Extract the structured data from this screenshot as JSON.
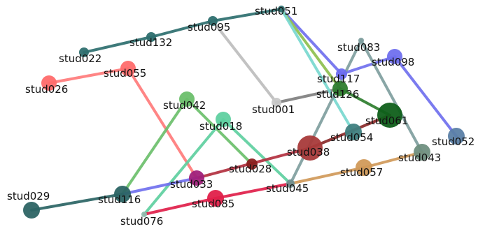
{
  "graph": {
    "nodes": [
      {
        "id": "stud051",
        "label": "stud051",
        "color": "#2e6f6f"
      },
      {
        "id": "stud095",
        "label": "stud095",
        "color": "#2e6f6f"
      },
      {
        "id": "stud132",
        "label": "stud132",
        "color": "#2e6f6f"
      },
      {
        "id": "stud022",
        "label": "stud022",
        "color": "#2e6f6f"
      },
      {
        "id": "stud055",
        "label": "stud055",
        "color": "#ff6b6b"
      },
      {
        "id": "stud026",
        "label": "stud026",
        "color": "#ff6b6b"
      },
      {
        "id": "stud083",
        "label": "stud083",
        "color": "#7f9f9f"
      },
      {
        "id": "stud098",
        "label": "stud098",
        "color": "#7070ee"
      },
      {
        "id": "stud117",
        "label": "stud117",
        "color": "#6c6cf0"
      },
      {
        "id": "stud126",
        "label": "stud126",
        "color": "#2e7d2e"
      },
      {
        "id": "stud001",
        "label": "stud001",
        "color": "#c8c8c8"
      },
      {
        "id": "stud042",
        "label": "stud042",
        "color": "#6cbf6c"
      },
      {
        "id": "stud018",
        "label": "stud018",
        "color": "#5fd0a0"
      },
      {
        "id": "stud061",
        "label": "stud061",
        "color": "#0f5f1a"
      },
      {
        "id": "stud054",
        "label": "stud054",
        "color": "#3f7f80"
      },
      {
        "id": "stud052",
        "label": "stud052",
        "color": "#5b7fa6"
      },
      {
        "id": "stud038",
        "label": "stud038",
        "color": "#a83a3a"
      },
      {
        "id": "stud043",
        "label": "stud043",
        "color": "#6f8f80"
      },
      {
        "id": "stud028",
        "label": "stud028",
        "color": "#8a1f1f"
      },
      {
        "id": "stud057",
        "label": "stud057",
        "color": "#d19a5a"
      },
      {
        "id": "stud033",
        "label": "stud033",
        "color": "#a0207a"
      },
      {
        "id": "stud045",
        "label": "stud045",
        "color": "#708f8f"
      },
      {
        "id": "stud116",
        "label": "stud116",
        "color": "#2b6464"
      },
      {
        "id": "stud085",
        "label": "stud085",
        "color": "#e0204a"
      },
      {
        "id": "stud029",
        "label": "stud029",
        "color": "#2d6464"
      },
      {
        "id": "stud076",
        "label": "stud076",
        "color": "#8fbfb0"
      }
    ],
    "edges": [
      {
        "source": "stud022",
        "target": "stud132",
        "color": "#2e6f6f"
      },
      {
        "source": "stud132",
        "target": "stud095",
        "color": "#2e6f6f"
      },
      {
        "source": "stud095",
        "target": "stud051",
        "color": "#2e6f6f"
      },
      {
        "source": "stud095",
        "target": "stud001",
        "color": "#bdbdbd"
      },
      {
        "source": "stud001",
        "target": "stud126",
        "color": "#7f7f7f"
      },
      {
        "source": "stud051",
        "target": "stud117",
        "color": "#7070ee"
      },
      {
        "source": "stud051",
        "target": "stud126",
        "color": "#8fbf4f"
      },
      {
        "source": "stud051",
        "target": "stud054",
        "color": "#79d8d0"
      },
      {
        "source": "stud117",
        "target": "stud098",
        "color": "#7070ee"
      },
      {
        "source": "stud098",
        "target": "stud052",
        "color": "#7070ee"
      },
      {
        "source": "stud083",
        "target": "stud043",
        "color": "#7f9f9f"
      },
      {
        "source": "stud083",
        "target": "stud045",
        "color": "#7f9f9f"
      },
      {
        "source": "stud126",
        "target": "stud061",
        "color": "#2e7d2e"
      },
      {
        "source": "stud026",
        "target": "stud055",
        "color": "#ff7b7b"
      },
      {
        "source": "stud055",
        "target": "stud033",
        "color": "#ff7b7b"
      },
      {
        "source": "stud042",
        "target": "stud116",
        "color": "#6cbf6c"
      },
      {
        "source": "stud042",
        "target": "stud028",
        "color": "#6cbf6c"
      },
      {
        "source": "stud018",
        "target": "stud045",
        "color": "#5fd0a0"
      },
      {
        "source": "stud018",
        "target": "stud076",
        "color": "#5fd0a0"
      },
      {
        "source": "stud033",
        "target": "stud038",
        "color": "#b23040"
      },
      {
        "source": "stud038",
        "target": "stud061",
        "color": "#8a2a2a"
      },
      {
        "source": "stud116",
        "target": "stud033",
        "color": "#7070ee"
      },
      {
        "source": "stud029",
        "target": "stud116",
        "color": "#2b6464"
      },
      {
        "source": "stud076",
        "target": "stud085",
        "color": "#e0204a"
      },
      {
        "source": "stud085",
        "target": "stud045",
        "color": "#e0204a"
      },
      {
        "source": "stud045",
        "target": "stud057",
        "color": "#d19a5a"
      },
      {
        "source": "stud057",
        "target": "stud043",
        "color": "#d19a5a"
      }
    ]
  }
}
